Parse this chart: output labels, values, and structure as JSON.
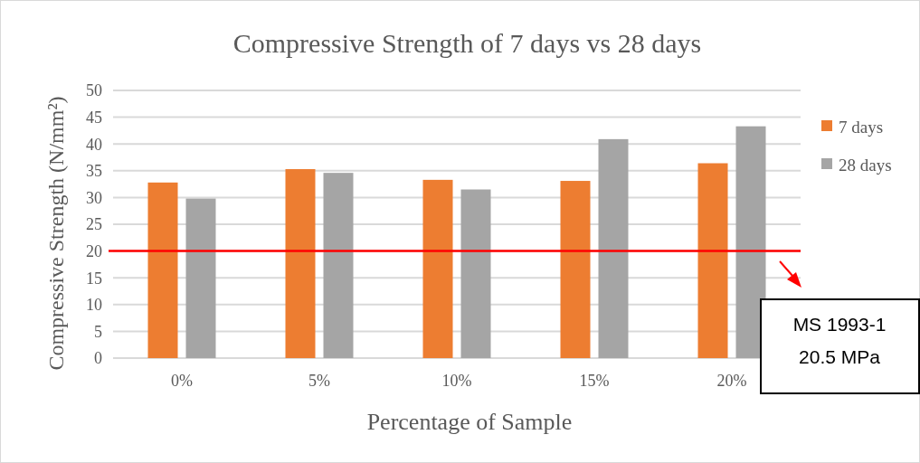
{
  "chart_data": {
    "type": "bar",
    "title": "Compressive Strength of 7 days vs 28 days",
    "xlabel": "Percentage of Sample",
    "ylabel": "Compressive Strength (N/mm²)",
    "categories": [
      "0%",
      "5%",
      "10%",
      "15%",
      "20%"
    ],
    "series": [
      {
        "name": "7 days",
        "color": "#ed7d31",
        "values": [
          32.8,
          35.3,
          33.3,
          33.1,
          36.4
        ]
      },
      {
        "name": "28 days",
        "color": "#a5a5a5",
        "values": [
          29.8,
          34.6,
          31.5,
          40.9,
          43.3
        ]
      }
    ],
    "ylim": [
      0,
      50
    ],
    "yticks": [
      0,
      5,
      10,
      15,
      20,
      25,
      30,
      35,
      40,
      45,
      50
    ],
    "grid": "y",
    "legend": "right",
    "ref_lines": [
      {
        "axis": "y",
        "value": 20,
        "color": "#ff0000"
      }
    ],
    "annotations": [
      "MS 1993-1",
      "20.5 MPa"
    ]
  }
}
